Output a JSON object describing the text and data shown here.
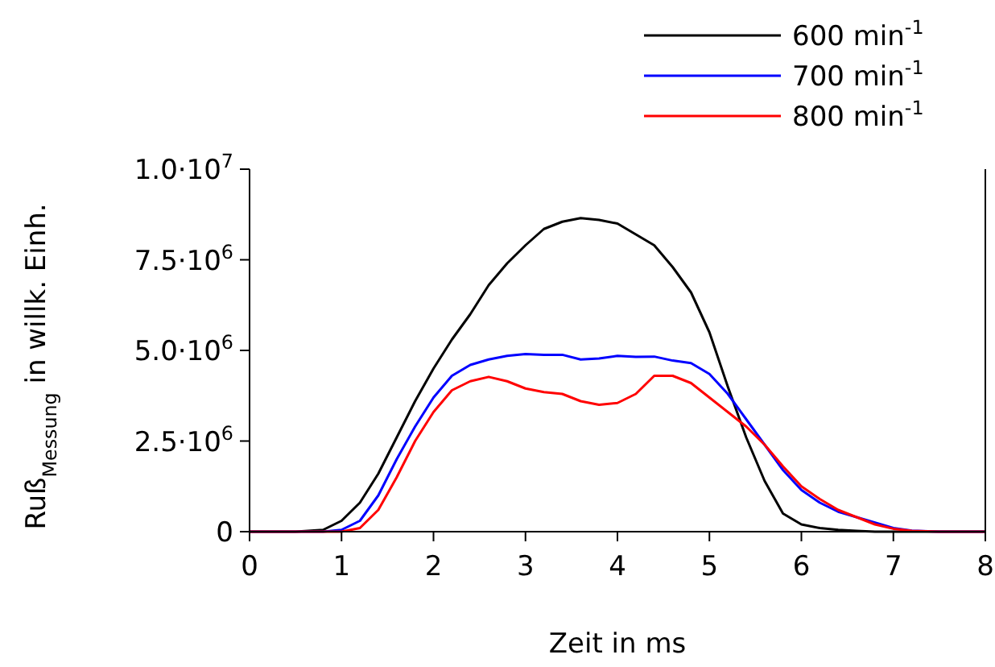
{
  "chart_data": {
    "type": "line",
    "xlabel": "Zeit in ms",
    "ylabel": "Ruß$_{Messung}$ in willk. Einh.",
    "x": [
      0,
      0.5,
      0.8,
      1.0,
      1.2,
      1.4,
      1.6,
      1.8,
      2.0,
      2.2,
      2.4,
      2.6,
      2.8,
      3.0,
      3.2,
      3.4,
      3.6,
      3.8,
      4.0,
      4.2,
      4.4,
      4.6,
      4.8,
      5.0,
      5.2,
      5.4,
      5.6,
      5.8,
      6.0,
      6.2,
      6.4,
      6.6,
      6.8,
      7.0,
      7.2,
      7.5,
      8.0
    ],
    "series": [
      {
        "name": "600 min$^{-1}$",
        "color": "#000000",
        "values": [
          0,
          0,
          50000,
          300000,
          800000,
          1600000,
          2600000,
          3600000,
          4500000,
          5300000,
          6000000,
          6800000,
          7400000,
          7900000,
          8350000,
          8550000,
          8650000,
          8600000,
          8500000,
          8200000,
          7900000,
          7300000,
          6600000,
          5500000,
          4000000,
          2600000,
          1400000,
          500000,
          200000,
          100000,
          50000,
          20000,
          0,
          0,
          0,
          0,
          0
        ]
      },
      {
        "name": "700 min$^{-1}$",
        "color": "#0000ff",
        "values": [
          0,
          0,
          0,
          50000,
          300000,
          1000000,
          2000000,
          2900000,
          3700000,
          4300000,
          4600000,
          4750000,
          4850000,
          4900000,
          4880000,
          4880000,
          4750000,
          4780000,
          4850000,
          4820000,
          4830000,
          4720000,
          4650000,
          4350000,
          3800000,
          3100000,
          2400000,
          1700000,
          1150000,
          800000,
          550000,
          400000,
          250000,
          100000,
          30000,
          0,
          0
        ]
      },
      {
        "name": "800 min$^{-1}$",
        "color": "#ff0000",
        "values": [
          0,
          0,
          0,
          0,
          100000,
          600000,
          1500000,
          2500000,
          3300000,
          3900000,
          4150000,
          4270000,
          4150000,
          3950000,
          3850000,
          3800000,
          3600000,
          3500000,
          3550000,
          3800000,
          4300000,
          4300000,
          4100000,
          3700000,
          3300000,
          2900000,
          2400000,
          1800000,
          1250000,
          900000,
          600000,
          400000,
          200000,
          80000,
          20000,
          0,
          0
        ]
      }
    ],
    "xlim": [
      0,
      8
    ],
    "xticks": [
      0,
      1,
      2,
      3,
      4,
      5,
      6,
      7,
      8
    ],
    "ylim": [
      0,
      10000000
    ],
    "yticks": [
      0,
      {
        "value": 2500000,
        "label": "2.5·10$^{6}$"
      },
      {
        "value": 5000000,
        "label": "5.0·10$^{6}$"
      },
      {
        "value": 7500000,
        "label": "7.5·10$^{6}$"
      },
      {
        "value": 10000000,
        "label": "1.0·10$^{7}$"
      }
    ],
    "legend": "top right",
    "grid": false,
    "marker": "none",
    "line_style": "solid"
  }
}
